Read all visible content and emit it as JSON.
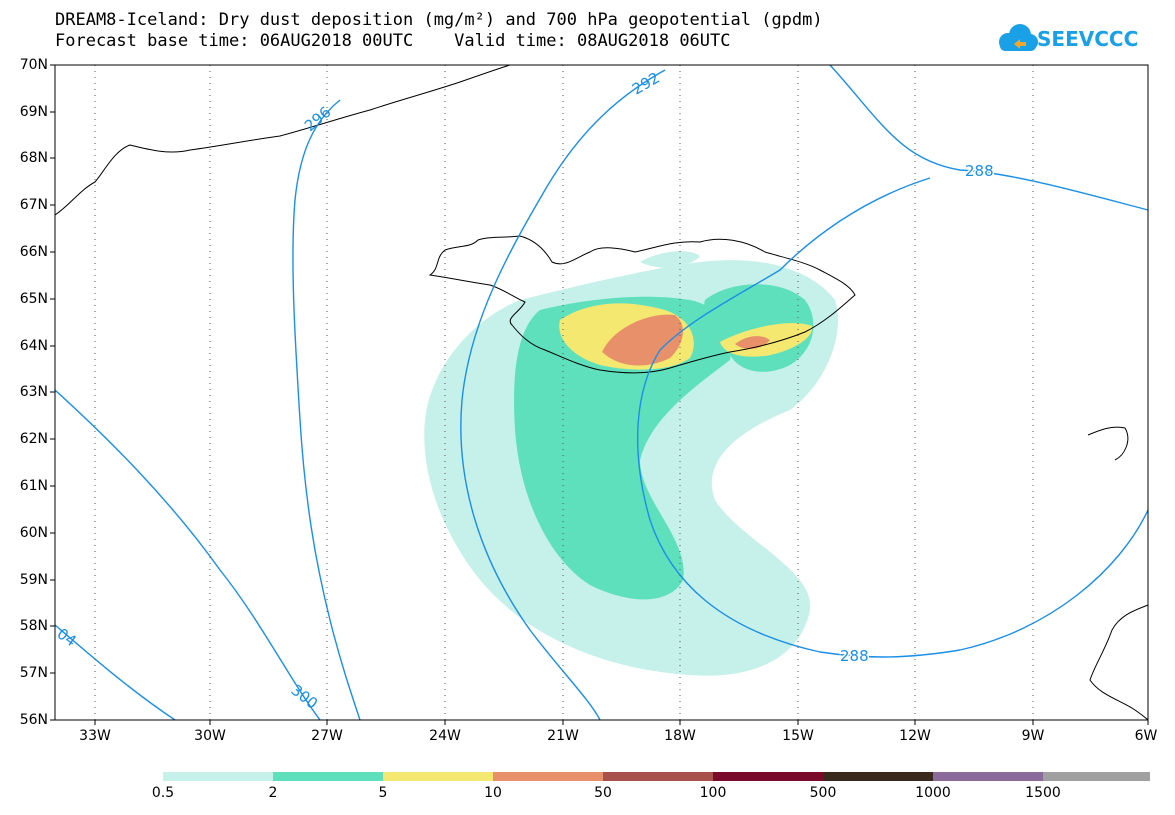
{
  "title": {
    "line1": "DREAM8-Iceland: Dry dust deposition (mg/m²) and 700 hPa geopotential (gpdm)",
    "line2": "Forecast base time: 06AUG2018 00UTC    Valid time: 08AUG2018 06UTC"
  },
  "logo": {
    "text": "SEEVCCC",
    "icon": "cloud-icon",
    "color": "#1aa0e6"
  },
  "map": {
    "lat_labels": [
      "70N",
      "69N",
      "68N",
      "67N",
      "66N",
      "65N",
      "64N",
      "63N",
      "62N",
      "61N",
      "60N",
      "59N",
      "58N",
      "57N",
      "56N"
    ],
    "lon_labels": [
      "33W",
      "30W",
      "27W",
      "24W",
      "21W",
      "18W",
      "15W",
      "12W",
      "9W",
      "6W"
    ],
    "contour_color": "#1a8fe8",
    "contour_labels": [
      "296",
      "292",
      "288",
      "288",
      "300",
      "04"
    ]
  },
  "legend": {
    "colors": [
      "#c6f0ea",
      "#5ee0bd",
      "#f5e870",
      "#e8906a",
      "#a8504a",
      "#7a0a2a",
      "#3a2a1e",
      "#8a6a9a",
      "#a0a0a0"
    ],
    "labels": [
      "0.5",
      "2",
      "5",
      "10",
      "50",
      "100",
      "500",
      "1000",
      "1500"
    ]
  }
}
